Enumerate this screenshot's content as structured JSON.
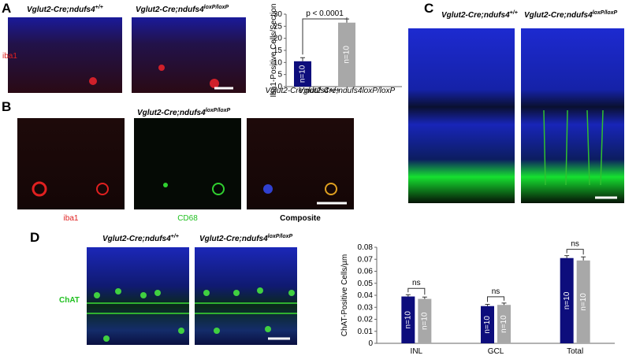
{
  "panels": {
    "A": {
      "letter": "A",
      "labels": [
        {
          "text": "Vglut2-Cre;ndufs4",
          "sup": "+/+"
        },
        {
          "text": "Vglut2-Cre;ndufs4",
          "sup": "loxP/loxP"
        }
      ],
      "stain": "iba1"
    },
    "B": {
      "letter": "B",
      "label": {
        "text": "Vglut2-Cre;ndufs4",
        "sup": "loxP/loxP"
      },
      "captions": [
        "iba1",
        "CD68",
        "Composite"
      ]
    },
    "C": {
      "letter": "C",
      "labels": [
        {
          "text": "Vglut2-Cre;ndufs4",
          "sup": "+/+"
        },
        {
          "text": "Vglut2-Cre;ndufs4",
          "sup": "loxP/loxP"
        }
      ]
    },
    "D": {
      "letter": "D",
      "labels": [
        {
          "text": "Vglut2-Cre;ndufs4",
          "sup": "+/+"
        },
        {
          "text": "Vglut2-Cre;ndufs4",
          "sup": "loxP/loxP"
        }
      ],
      "stain": "ChAT"
    }
  },
  "chart_data": [
    {
      "type": "bar",
      "ylabel": "Iba1-Positive Cells/Section",
      "categories": [
        "Vglut2-Cre;ndufs4+/+",
        "Vglut2-Cre;ndufs4loxP/loxP"
      ],
      "values": [
        10.5,
        26.5
      ],
      "errors": [
        1.5,
        1.5
      ],
      "colors": [
        "#0d0d7c",
        "#a8a8a8"
      ],
      "bar_labels": [
        "n=10",
        "n=10"
      ],
      "annotation": "p < 0.0001",
      "ylim": [
        0,
        30
      ],
      "yticks": [
        0,
        5,
        10,
        15,
        20,
        25,
        30
      ]
    },
    {
      "type": "grouped_bar",
      "ylabel": "ChAT-Positive Cells/µm",
      "categories": [
        "INL",
        "GCL",
        "Total"
      ],
      "series": [
        {
          "color": "#0d0d7c",
          "values": [
            0.039,
            0.031,
            0.071
          ],
          "errors": [
            0.0015,
            0.0015,
            0.002
          ],
          "bar_labels": [
            "n=10",
            "n=10",
            "n=10"
          ]
        },
        {
          "color": "#a8a8a8",
          "values": [
            0.037,
            0.032,
            0.069
          ],
          "errors": [
            0.0015,
            0.0015,
            0.003
          ],
          "bar_labels": [
            "n=10",
            "n=10",
            "n=10"
          ]
        }
      ],
      "annotations": [
        "ns",
        "ns",
        "ns"
      ],
      "ylim": [
        0,
        0.08
      ],
      "yticks": [
        0,
        0.01,
        0.02,
        0.03,
        0.04,
        0.05,
        0.06,
        0.07,
        0.08
      ]
    }
  ]
}
